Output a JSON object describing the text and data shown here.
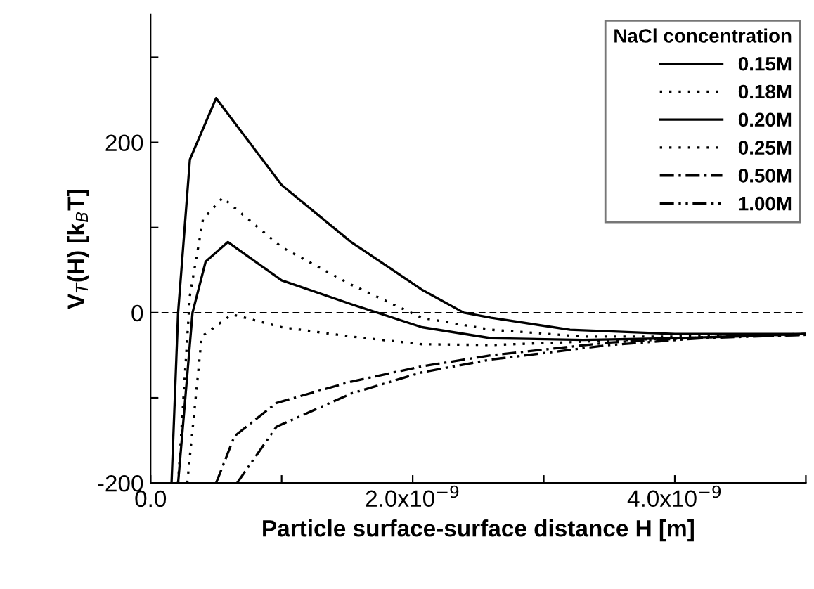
{
  "chart_data": {
    "type": "line",
    "xlabel": "Particle surface-surface distance H [m]",
    "ylabel": "V$_{T}$(H) [k$_{B}$T]",
    "legend_title": "NaCl concentration",
    "legend": "top right",
    "grid": false,
    "marker": "none",
    "xlim": [
      0,
      5e-09
    ],
    "ylim": [
      -200,
      350
    ],
    "xticks": [
      {
        "value": 0,
        "label": "0.0"
      },
      {
        "value": 1e-09,
        "label": null
      },
      {
        "value": 2e-09,
        "label": "2.0x10$^{−9}$"
      },
      {
        "value": 3e-09,
        "label": null
      },
      {
        "value": 4e-09,
        "label": "4.0x10$^{−9}$"
      },
      {
        "value": 5e-09,
        "label": null
      }
    ],
    "yticks": [
      -200,
      {
        "value": -100,
        "label": null
      },
      0,
      {
        "value": 100,
        "label": null
      },
      200,
      {
        "value": 300,
        "label": null
      }
    ],
    "ref_lines": [
      {
        "axis": "y",
        "value": 0,
        "label": null,
        "color": "#000000",
        "line_style": "dashed"
      }
    ],
    "series": [
      {
        "name": "0.15M",
        "color": "#000000",
        "line_style": "solid",
        "x": [
          1.6e-10,
          2.1e-10,
          3e-10,
          5e-10,
          1e-09,
          1.53e-09,
          2.07e-09,
          2.39e-09,
          2.6e-09,
          3.2e-09,
          4e-09,
          5e-09
        ],
        "values": [
          -200,
          0,
          180,
          252,
          150,
          83,
          27,
          0,
          -6,
          -20,
          -25,
          -25
        ]
      },
      {
        "name": "0.18M",
        "color": "#000000",
        "line_style": "dotted",
        "x": [
          2.1e-10,
          3e-10,
          4e-10,
          5.5e-10,
          1e-09,
          1.53e-09,
          2.07e-09,
          2.6e-09,
          3.3e-09,
          4e-09,
          5e-09
        ],
        "values": [
          -200,
          20,
          110,
          135,
          77,
          33,
          -6,
          -20,
          -28,
          -28,
          -25
        ]
      },
      {
        "name": "0.20M",
        "color": "#000000",
        "line_style": "solid",
        "x": [
          2.1e-10,
          3.2e-10,
          4.2e-10,
          5.9e-10,
          1e-09,
          1.53e-09,
          2.07e-09,
          2.6e-09,
          3.3e-09,
          4e-09,
          5e-09
        ],
        "values": [
          -200,
          0,
          60,
          83,
          38,
          10,
          -17,
          -30,
          -32,
          -30,
          -25
        ]
      },
      {
        "name": "0.25M",
        "color": "#000000",
        "line_style": "dotted",
        "x": [
          2.8e-10,
          3.9e-10,
          6.2e-10,
          1e-09,
          1.53e-09,
          2.07e-09,
          2.6e-09,
          3.3e-09,
          4e-09,
          5e-09
        ],
        "values": [
          -200,
          -28,
          -2,
          -17,
          -28,
          -37,
          -38,
          -34,
          -30,
          -25
        ]
      },
      {
        "name": "0.50M",
        "color": "#000000",
        "line_style": "dashdot",
        "x": [
          5e-10,
          6.4e-10,
          9.6e-10,
          1.53e-09,
          2.07e-09,
          2.6e-09,
          3.5e-09,
          4.2e-09,
          5e-09
        ],
        "values": [
          -200,
          -145,
          -106,
          -81,
          -63,
          -50,
          -35,
          -29,
          -26
        ]
      },
      {
        "name": "1.00M",
        "color": "#000000",
        "line_style": "dashdotdot",
        "x": [
          6.6e-10,
          9.6e-10,
          1.53e-09,
          2.07e-09,
          2.6e-09,
          3.5e-09,
          4.2e-09,
          5e-09
        ],
        "values": [
          -200,
          -134,
          -95,
          -70,
          -55,
          -38,
          -30,
          -26
        ]
      }
    ]
  }
}
